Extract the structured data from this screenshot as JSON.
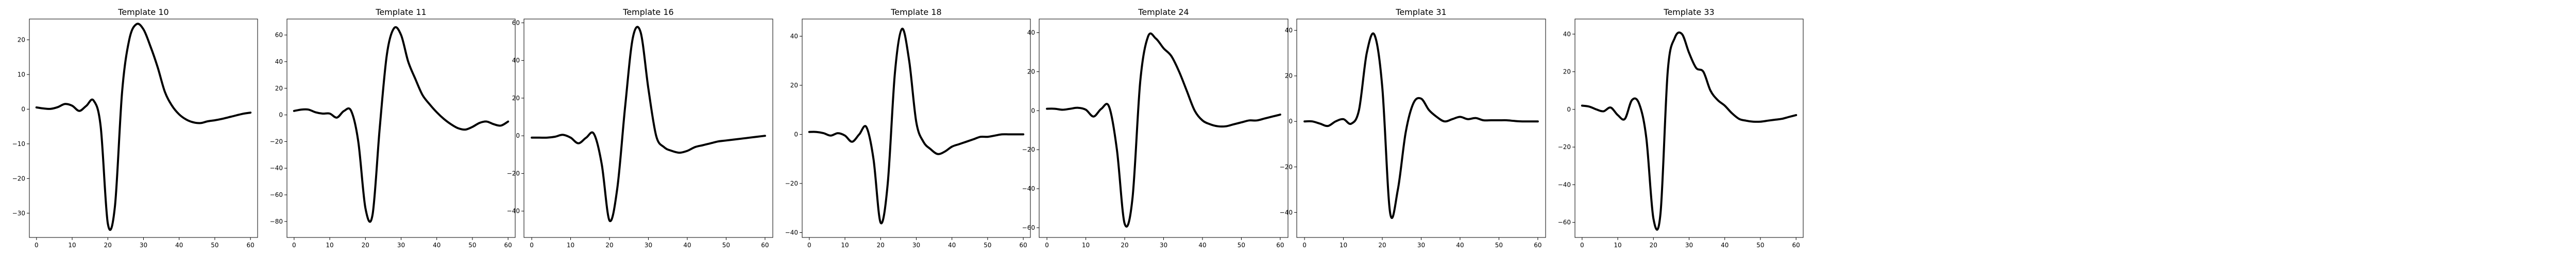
{
  "chart_data": [
    {
      "type": "line",
      "title": "Template 10",
      "xlim": [
        -2,
        62
      ],
      "ylim": [
        -37,
        26
      ],
      "xticks": [
        0,
        10,
        20,
        30,
        40,
        50,
        60
      ],
      "yticks": [
        -30,
        -20,
        -10,
        0,
        10,
        20
      ],
      "grid": false,
      "x": [
        0,
        2,
        4,
        6,
        8,
        10,
        12,
        14,
        16,
        18,
        20,
        22,
        24,
        26,
        28,
        30,
        32,
        34,
        36,
        38,
        40,
        42,
        44,
        46,
        48,
        50,
        52,
        54,
        56,
        58,
        60
      ],
      "y": [
        0.5,
        0.2,
        0.1,
        0.6,
        1.5,
        1.0,
        -0.5,
        1.0,
        2.5,
        -5,
        -33,
        -28,
        5,
        20,
        24.5,
        23,
        18,
        12,
        5,
        1,
        -1.5,
        -3,
        -3.8,
        -4,
        -3.5,
        -3.2,
        -2.8,
        -2.3,
        -1.8,
        -1.3,
        -1.0
      ]
    },
    {
      "type": "line",
      "title": "Template 11",
      "xlim": [
        -2,
        62
      ],
      "ylim": [
        -92,
        72
      ],
      "xticks": [
        0,
        10,
        20,
        30,
        40,
        50,
        60
      ],
      "yticks": [
        -80,
        -60,
        -40,
        -20,
        0,
        20,
        40,
        60
      ],
      "grid": false,
      "x": [
        0,
        2,
        4,
        6,
        8,
        10,
        12,
        14,
        16,
        18,
        20,
        22,
        24,
        26,
        28,
        30,
        32,
        34,
        36,
        38,
        40,
        42,
        44,
        46,
        48,
        50,
        52,
        54,
        56,
        58,
        60
      ],
      "y": [
        3,
        4,
        4,
        2,
        1,
        1,
        -2,
        3,
        3,
        -20,
        -70,
        -75,
        -10,
        45,
        65,
        60,
        40,
        27,
        15,
        8,
        2,
        -3,
        -7,
        -10,
        -11,
        -9,
        -6,
        -5,
        -7,
        -8,
        -5
      ]
    },
    {
      "type": "line",
      "title": "Template 16",
      "xlim": [
        -2,
        62
      ],
      "ylim": [
        -54,
        62
      ],
      "xticks": [
        0,
        10,
        20,
        30,
        40,
        50,
        60
      ],
      "yticks": [
        -40,
        -20,
        0,
        20,
        40,
        60
      ],
      "grid": false,
      "x": [
        0,
        2,
        4,
        6,
        8,
        10,
        12,
        14,
        16,
        18,
        20,
        22,
        24,
        26,
        28,
        30,
        32,
        34,
        36,
        38,
        40,
        42,
        44,
        46,
        48,
        50,
        52,
        54,
        56,
        58,
        60
      ],
      "y": [
        -1,
        -1,
        -1,
        -0.5,
        0.5,
        -1,
        -4,
        -1,
        1,
        -15,
        -45,
        -28,
        15,
        52,
        55,
        25,
        0,
        -6,
        -8,
        -9,
        -8,
        -6,
        -5,
        -4,
        -3,
        -2.5,
        -2,
        -1.5,
        -1,
        -0.5,
        0
      ]
    },
    {
      "type": "line",
      "title": "Template 18",
      "xlim": [
        -2,
        62
      ],
      "ylim": [
        -42,
        47
      ],
      "xticks": [
        0,
        10,
        20,
        30,
        40,
        50,
        60
      ],
      "yticks": [
        -40,
        -20,
        0,
        20,
        40
      ],
      "grid": false,
      "x": [
        0,
        2,
        4,
        6,
        8,
        10,
        12,
        14,
        16,
        18,
        20,
        22,
        24,
        26,
        28,
        30,
        32,
        34,
        36,
        38,
        40,
        42,
        44,
        46,
        48,
        50,
        52,
        54,
        56,
        58,
        60
      ],
      "y": [
        1,
        1,
        0.5,
        -0.5,
        0.5,
        -0.5,
        -3,
        0,
        3,
        -10,
        -36,
        -20,
        25,
        43,
        30,
        5,
        -3,
        -6,
        -8,
        -7,
        -5,
        -4,
        -3,
        -2,
        -1,
        -1,
        -0.5,
        0,
        0,
        0,
        0
      ]
    },
    {
      "type": "line",
      "title": "Template 24",
      "xlim": [
        -2,
        62
      ],
      "ylim": [
        -65,
        47
      ],
      "xticks": [
        0,
        10,
        20,
        30,
        40,
        50,
        60
      ],
      "yticks": [
        -60,
        -40,
        -20,
        0,
        20,
        40
      ],
      "grid": false,
      "x": [
        0,
        2,
        4,
        6,
        8,
        10,
        12,
        14,
        16,
        18,
        20,
        22,
        24,
        26,
        28,
        30,
        32,
        34,
        36,
        38,
        40,
        42,
        44,
        46,
        48,
        50,
        52,
        54,
        56,
        58,
        60
      ],
      "y": [
        1,
        1,
        0.5,
        1,
        1.5,
        0.5,
        -3,
        1,
        2,
        -20,
        -58,
        -45,
        15,
        38,
        37,
        32,
        28,
        20,
        10,
        0,
        -5,
        -7,
        -8,
        -8,
        -7,
        -6,
        -5,
        -5,
        -4,
        -3,
        -2
      ]
    },
    {
      "type": "line",
      "title": "Template 31",
      "xlim": [
        -2,
        62
      ],
      "ylim": [
        -51,
        45
      ],
      "xticks": [
        0,
        10,
        20,
        30,
        40,
        50,
        60
      ],
      "yticks": [
        -40,
        -20,
        0,
        20,
        40
      ],
      "grid": false,
      "x": [
        0,
        2,
        4,
        6,
        8,
        10,
        12,
        14,
        16,
        18,
        20,
        22,
        24,
        26,
        28,
        30,
        32,
        34,
        36,
        38,
        40,
        42,
        44,
        46,
        48,
        50,
        52,
        54,
        56,
        58,
        60
      ],
      "y": [
        0,
        0,
        -1,
        -2,
        0,
        1,
        -1,
        5,
        30,
        38,
        15,
        -40,
        -30,
        -5,
        8,
        10,
        5,
        2,
        0,
        1,
        2,
        1,
        1.5,
        0.5,
        0.5,
        0.5,
        0.5,
        0.2,
        0,
        0,
        0
      ]
    },
    {
      "type": "line",
      "title": "Template 33",
      "xlim": [
        -2,
        62
      ],
      "ylim": [
        -68,
        48
      ],
      "xticks": [
        0,
        10,
        20,
        30,
        40,
        50,
        60
      ],
      "yticks": [
        -60,
        -40,
        -20,
        0,
        20,
        40
      ],
      "grid": false,
      "x": [
        0,
        2,
        4,
        6,
        8,
        10,
        12,
        14,
        16,
        18,
        20,
        22,
        24,
        26,
        28,
        30,
        32,
        34,
        36,
        38,
        40,
        42,
        44,
        46,
        48,
        50,
        52,
        54,
        56,
        58,
        60
      ],
      "y": [
        2,
        1.5,
        0,
        -1,
        1,
        -3,
        -5,
        5,
        3,
        -15,
        -58,
        -55,
        20,
        38,
        40,
        30,
        22,
        20,
        10,
        5,
        2,
        -2,
        -5,
        -6,
        -6.5,
        -6.5,
        -6,
        -5.5,
        -5,
        -4,
        -3
      ]
    }
  ]
}
